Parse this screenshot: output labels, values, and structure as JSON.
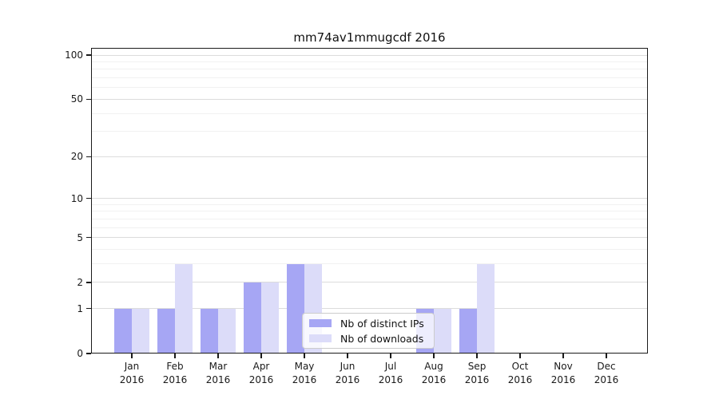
{
  "chart_data": {
    "type": "bar",
    "title": "mm74av1mmugcdf 2016",
    "categories": [
      "Jan",
      "Feb",
      "Mar",
      "Apr",
      "May",
      "Jun",
      "Jul",
      "Aug",
      "Sep",
      "Oct",
      "Nov",
      "Dec"
    ],
    "x_year_label": "2016",
    "series": [
      {
        "name": "Nb of distinct IPs",
        "color": "#a6a6f4",
        "values": [
          1,
          1,
          1,
          2,
          3,
          0,
          0,
          1,
          1,
          0,
          0,
          0
        ]
      },
      {
        "name": "Nb of downloads",
        "color": "#dcdcf9",
        "values": [
          1,
          3,
          1,
          2,
          3,
          0,
          0,
          1,
          3,
          0,
          0,
          0
        ]
      }
    ],
    "y_scale": "log10(1+y)",
    "ylim": [
      0,
      114
    ],
    "y_ticks": [
      0,
      1,
      2,
      5,
      10,
      20,
      50,
      100
    ],
    "y_minor_gridlines": [
      3,
      4,
      6,
      7,
      8,
      9,
      30,
      40,
      60,
      70,
      80,
      90
    ],
    "grid": "horizontal",
    "grid_major_color": "#dcdcdc",
    "grid_minor_color": "#f1f1f1",
    "legend_position": "lower center",
    "legend_entries": [
      "Nb of distinct IPs",
      "Nb of downloads"
    ]
  }
}
